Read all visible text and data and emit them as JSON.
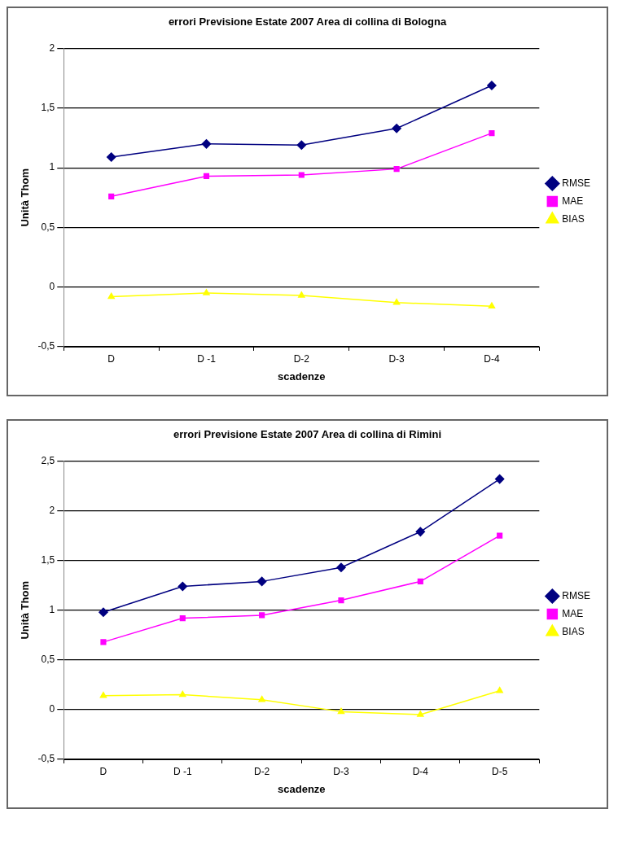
{
  "chart_data": [
    {
      "type": "line",
      "title": "errori Previsione Estate 2007 Area di collina di Bologna",
      "xlabel": "scadenze",
      "ylabel": "Unità Thom",
      "categories": [
        "D",
        "D -1",
        "D-2",
        "D-3",
        "D-4"
      ],
      "series": [
        {
          "name": "RMSE",
          "color": "#000080",
          "marker": "diamond",
          "values": [
            1.09,
            1.2,
            1.19,
            1.33,
            1.69
          ]
        },
        {
          "name": "MAE",
          "color": "#ff00ff",
          "marker": "square",
          "values": [
            0.76,
            0.93,
            0.94,
            0.99,
            1.29
          ]
        },
        {
          "name": "BIAS",
          "color": "#ffff00",
          "marker": "triangle",
          "values": [
            -0.08,
            -0.05,
            -0.07,
            -0.13,
            -0.16
          ]
        }
      ],
      "ylim": [
        -0.5,
        2
      ],
      "yticks": [
        {
          "value": -0.5,
          "label": "-0,5"
        },
        0,
        {
          "value": 0.5,
          "label": "0,5"
        },
        1,
        {
          "value": 1.5,
          "label": "1,5"
        },
        2
      ],
      "grid": "y",
      "legend": "right",
      "line_style": "solid"
    },
    {
      "type": "line",
      "title": "errori Previsione Estate 2007 Area di collina di Rimini",
      "xlabel": "scadenze",
      "ylabel": "Unità Thom",
      "categories": [
        "D",
        "D -1",
        "D-2",
        "D-3",
        "D-4",
        "D-5"
      ],
      "series": [
        {
          "name": "RMSE",
          "color": "#000080",
          "marker": "diamond",
          "values": [
            0.98,
            1.24,
            1.29,
            1.43,
            1.79,
            2.32
          ]
        },
        {
          "name": "MAE",
          "color": "#ff00ff",
          "marker": "square",
          "values": [
            0.68,
            0.92,
            0.95,
            1.1,
            1.29,
            1.75
          ]
        },
        {
          "name": "BIAS",
          "color": "#ffff00",
          "marker": "triangle",
          "values": [
            0.14,
            0.15,
            0.1,
            -0.02,
            -0.05,
            0.19
          ]
        }
      ],
      "ylim": [
        -0.5,
        2.5
      ],
      "yticks": [
        {
          "value": -0.5,
          "label": "-0,5"
        },
        0,
        {
          "value": 0.5,
          "label": "0,5"
        },
        1,
        {
          "value": 1.5,
          "label": "1,5"
        },
        2,
        {
          "value": 2.5,
          "label": "2,5"
        }
      ],
      "grid": "y",
      "legend": "right",
      "line_style": "solid"
    }
  ]
}
